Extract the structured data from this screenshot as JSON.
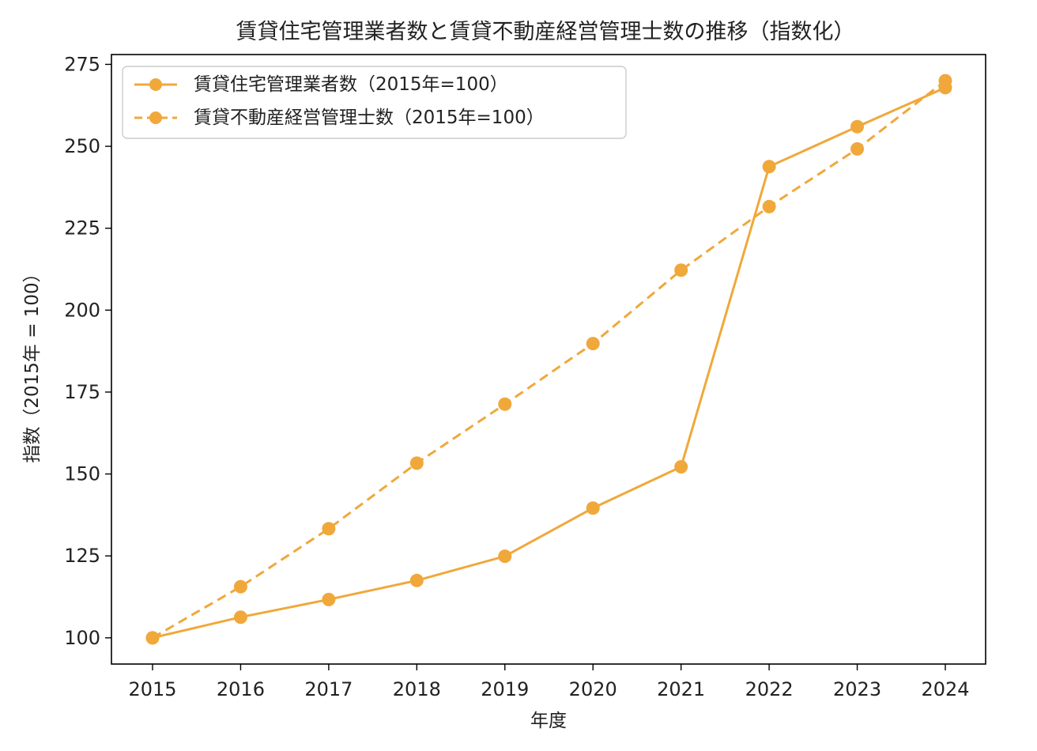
{
  "chart_data": {
    "type": "line",
    "title": "賃貸住宅管理業者数と賃貸不動産経営管理士数の推移（指数化）",
    "xlabel": "年度",
    "ylabel": "指数（2015年 = 100）",
    "x": [
      "2015",
      "2016",
      "2017",
      "2018",
      "2019",
      "2020",
      "2021",
      "2022",
      "2023",
      "2024"
    ],
    "ylim": [
      92,
      278
    ],
    "yticks": [
      100,
      125,
      150,
      175,
      200,
      225,
      250,
      275
    ],
    "grid": false,
    "legend_position": "top-left",
    "series": [
      {
        "name": "賃貸住宅管理業者数（2015年=100）",
        "line_style": "solid",
        "color": "#f0a83b",
        "values": [
          100,
          106.3,
          111.7,
          117.5,
          124.9,
          139.6,
          152.2,
          243.8,
          256,
          267.9
        ]
      },
      {
        "name": "賃貸不動産経営管理士数（2015年=100）",
        "line_style": "dashed",
        "color": "#f0a83b",
        "values": [
          100,
          115.6,
          133.3,
          153.3,
          171.3,
          189.8,
          212.2,
          231.6,
          249.2,
          270
        ]
      }
    ]
  }
}
